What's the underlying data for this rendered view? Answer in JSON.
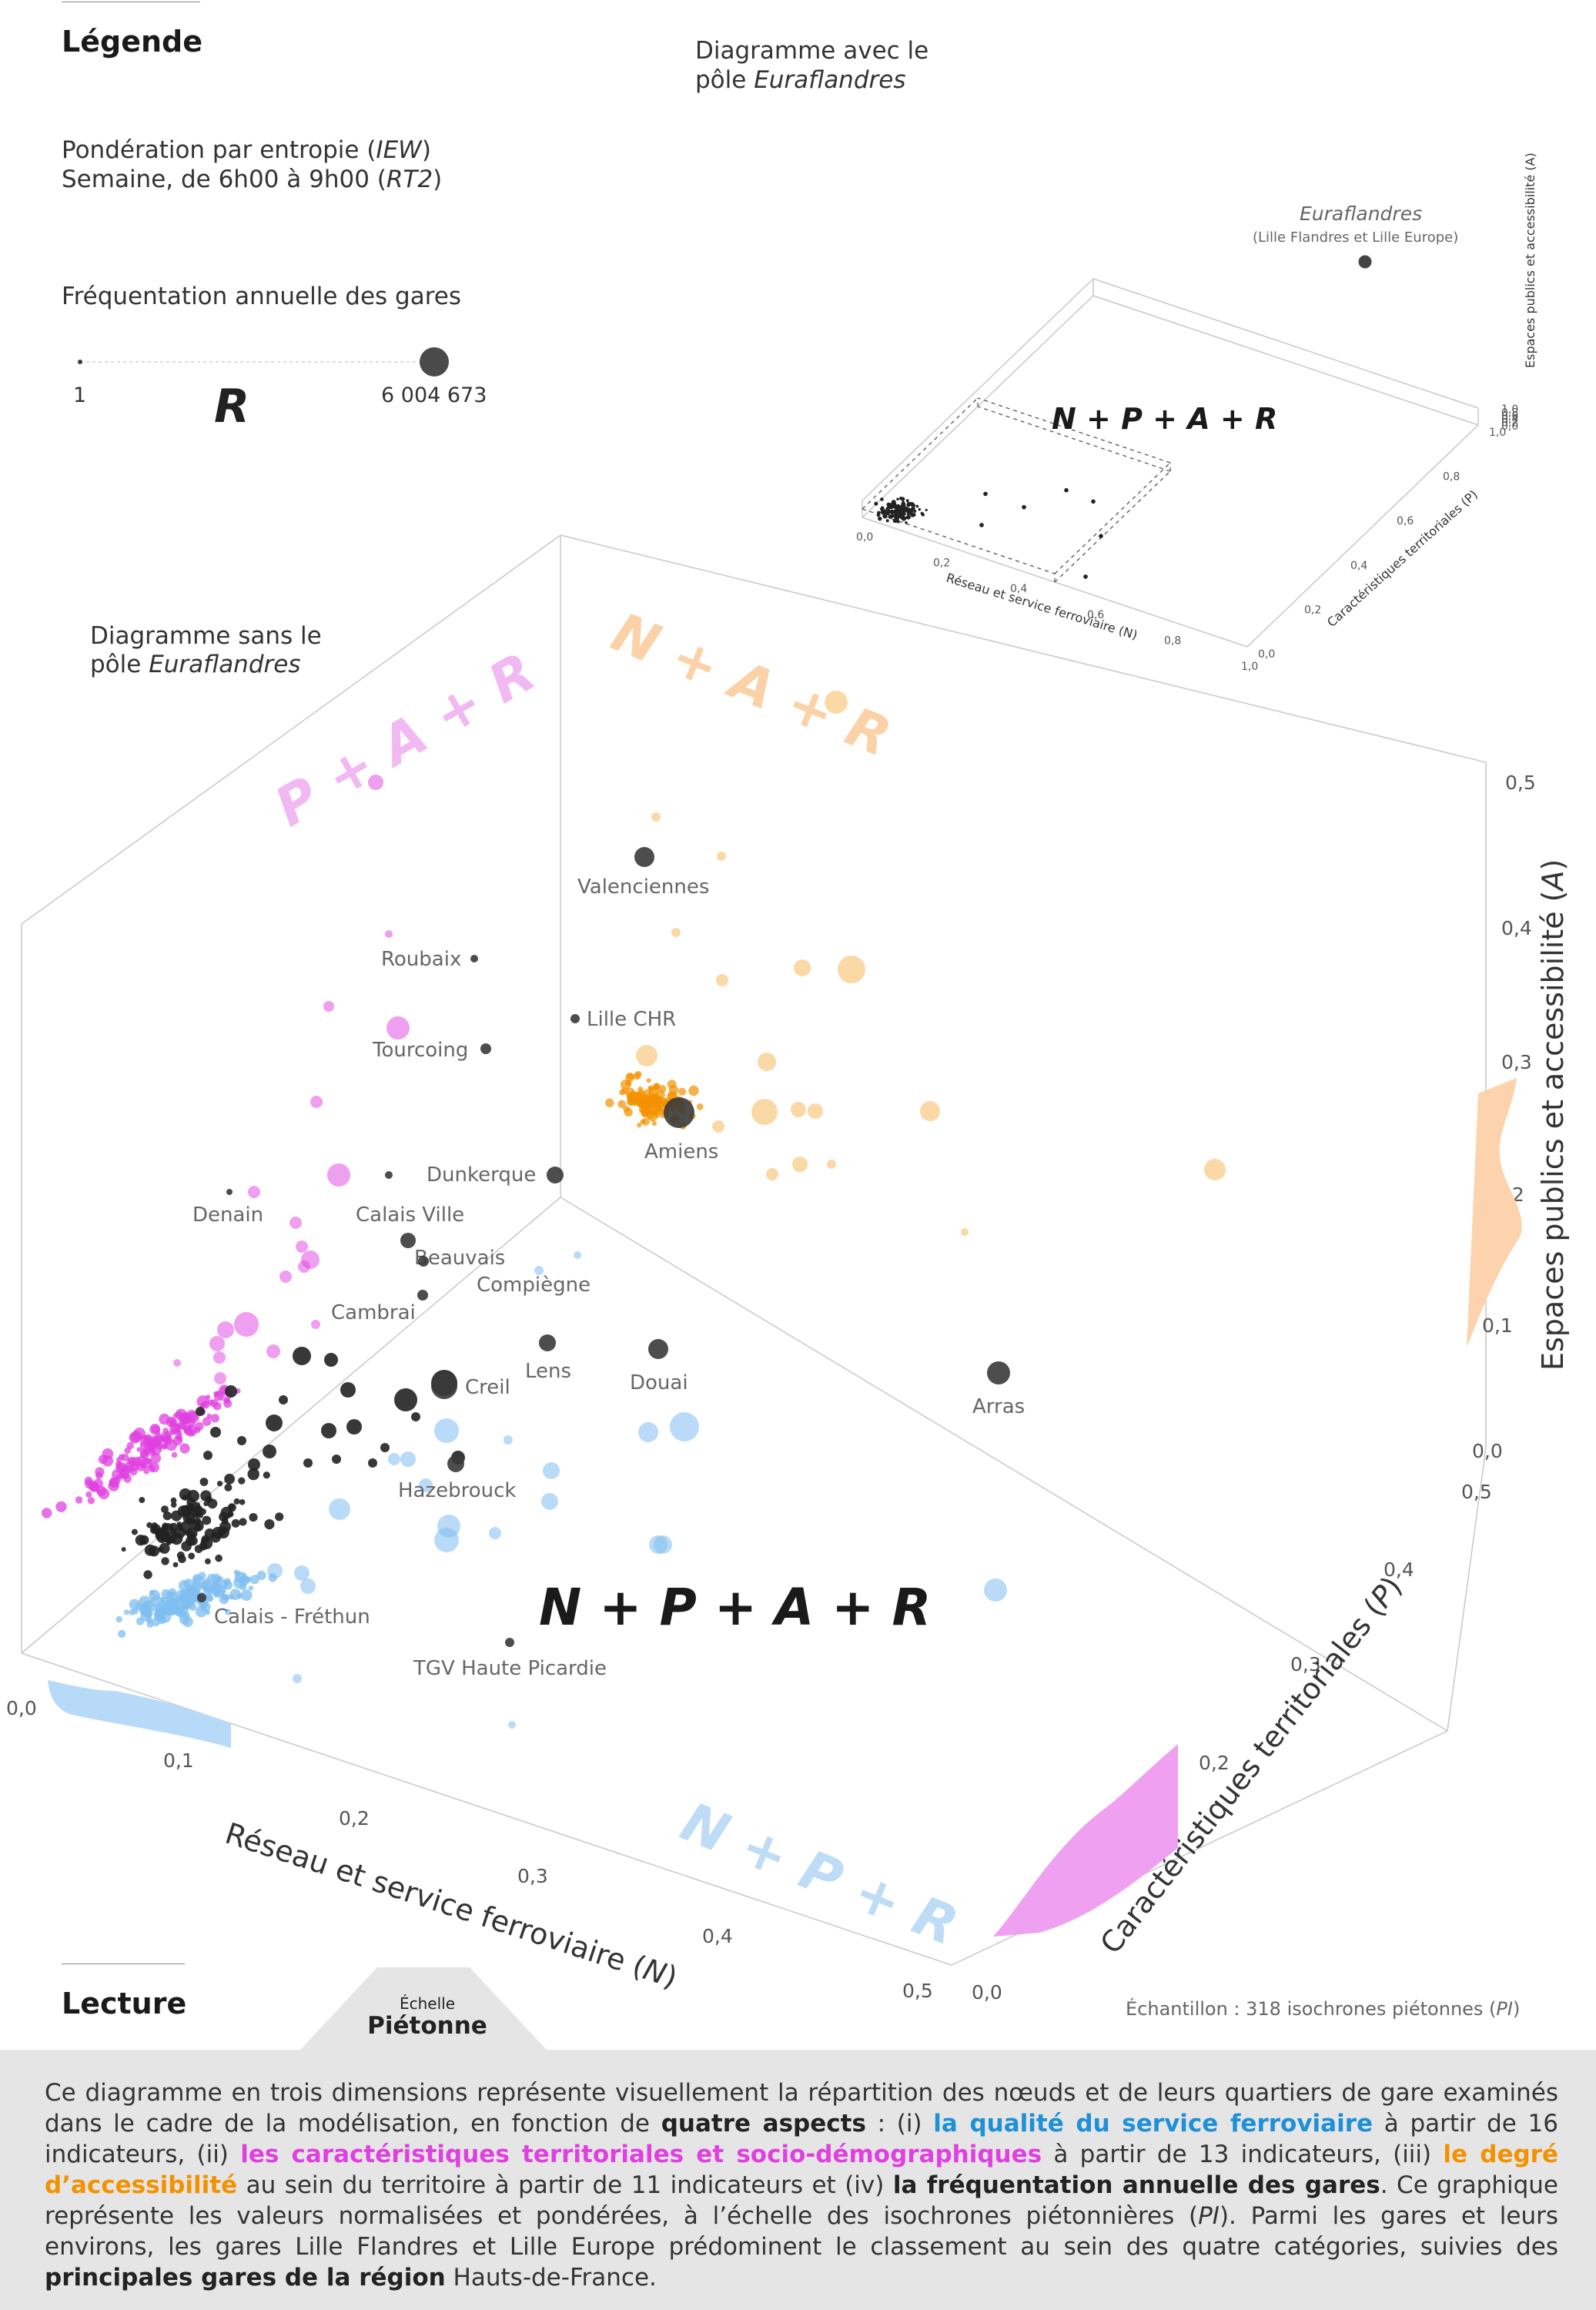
{
  "legend": {
    "title": "Légende",
    "weighting_line1_pre": "Pondération par entropie (",
    "weighting_line1_em": "IEW",
    "weighting_line1_post": ")",
    "weighting_line2_pre": "Semaine, de 6h00 à 9h00 (",
    "weighting_line2_em": "RT2",
    "weighting_line2_post": ")",
    "frequentation_title": "Fréquentation annuelle des gares",
    "size_min_label": "1",
    "size_max_label": "6 004 673",
    "size_letter": "R"
  },
  "inset": {
    "title_line1": "Diagramme avec le",
    "title_line2_pre": "pôle ",
    "title_line2_em": "Euraflandres",
    "combo_label": "N + P + A + R",
    "station_name": "Euraflandres",
    "station_sub": "(Lille Flandres et Lille Europe)"
  },
  "main": {
    "title_line1": "Diagramme sans le",
    "title_line2_pre": "pôle ",
    "title_line2_em": "Euraflandres",
    "combo_center": "N + P + A + R",
    "face_pink": "P + A + R",
    "face_orange": "N + A + R",
    "face_blue": "N + P + R",
    "sample_pre": "Échantillon : 318 isochrones piétonnes (",
    "sample_em": "PI",
    "sample_post": ")"
  },
  "lecture": {
    "title": "Lecture",
    "tab_small": "Échelle",
    "tab_big": "Piétonne",
    "p1": "Ce diagramme en trois dimensions représente visuellement la répartition des nœuds et de leurs quartiers de gare examinés dans le cadre de la modélisation, en fonction de ",
    "b1": "quatre aspects",
    "p2": " : (i) ",
    "blue1": "la qualité du service ferroviaire",
    "p3": " à partir de 16 indicateurs, (ii) ",
    "pink1": "les caractéristiques territoriales et socio-démographiques",
    "p4": " à partir de 13 indicateurs, (iii) ",
    "orange1": "le degré d’accessibilité",
    "p5": " au sein du territoire à partir de 11 indicateurs et (iv) ",
    "b2": "la fréquentation annuelle des gares",
    "p6": ". Ce graphique représente les valeurs normalisées et pondérées, à l’échelle des isochrones piétonnières (",
    "em1": "PI",
    "p7": "). Parmi les gares et leurs environs, les gares Lille Flandres et Lille Europe prédominent le classement au sein des quatre catégories, suivies des ",
    "b3": "principales gares de la région",
    "p8": " Hauts-de-France."
  },
  "colors": {
    "network_blue": "#7fbdf0",
    "territory_pink": "#e040e0",
    "access_orange": "#f39200",
    "station_dark": "#3a3a3a"
  },
  "chart_data": [
    {
      "type": "scatter",
      "title": "Diagramme sans le pôle Euraflandres",
      "axes": {
        "x": {
          "label_pre": "Réseau et service ferroviaire (",
          "label_em": "N",
          "label_post": ")",
          "ticks": [
            "0,0",
            "0,1",
            "0,2",
            "0,3",
            "0,4",
            "0,5"
          ],
          "range": [
            0,
            0.5
          ]
        },
        "y": {
          "label_pre": "Caractéristiques territoriales (",
          "label_em": "P",
          "label_post": ")",
          "ticks": [
            "0,0",
            "0,1",
            "0,2",
            "0,3",
            "0,4",
            "0,5"
          ],
          "range": [
            0,
            0.5
          ]
        },
        "z": {
          "label_pre": "Espaces publics et accessibilité (",
          "label_em": "A",
          "label_post": ")",
          "ticks": [
            "0,0",
            "0,1",
            "0,2",
            "0,3",
            "0,4",
            "0,5"
          ],
          "range": [
            0,
            0.5
          ]
        }
      },
      "labelled_stations": [
        {
          "name": "Valenciennes"
        },
        {
          "name": "Roubaix"
        },
        {
          "name": "Lille CHR"
        },
        {
          "name": "Tourcoing"
        },
        {
          "name": "Amiens"
        },
        {
          "name": "Dunkerque"
        },
        {
          "name": "Denain"
        },
        {
          "name": "Calais Ville"
        },
        {
          "name": "Beauvais"
        },
        {
          "name": "Compiègne"
        },
        {
          "name": "Cambrai"
        },
        {
          "name": "Creil"
        },
        {
          "name": "Lens"
        },
        {
          "name": "Douai"
        },
        {
          "name": "Arras"
        },
        {
          "name": "Hazebrouck"
        },
        {
          "name": "Calais - Fréthun"
        },
        {
          "name": "TGV Haute Picardie"
        }
      ],
      "sample_size": 318
    },
    {
      "type": "scatter",
      "title": "Diagramme avec le pôle Euraflandres",
      "axes": {
        "x": {
          "label": "Réseau et service ferroviaire (N)",
          "ticks": [
            "0,0",
            "0,2",
            "0,4",
            "0,6",
            "0,8",
            "1,0"
          ],
          "range": [
            0,
            1
          ]
        },
        "y": {
          "label": "Caractéristiques territoriales (P)",
          "ticks": [
            "0,0",
            "0,2",
            "0,4",
            "0,6",
            "0,8",
            "1,0"
          ],
          "range": [
            0,
            1
          ]
        },
        "z": {
          "label": "Espaces publics et accessibilité (A)",
          "ticks": [
            "0,0",
            "0,2",
            "0,4",
            "0,6",
            "0,8",
            "1,0"
          ],
          "range": [
            0,
            1
          ]
        }
      },
      "labelled_stations": [
        {
          "name": "Euraflandres",
          "detail": "(Lille Flandres et Lille Europe)"
        }
      ]
    }
  ]
}
